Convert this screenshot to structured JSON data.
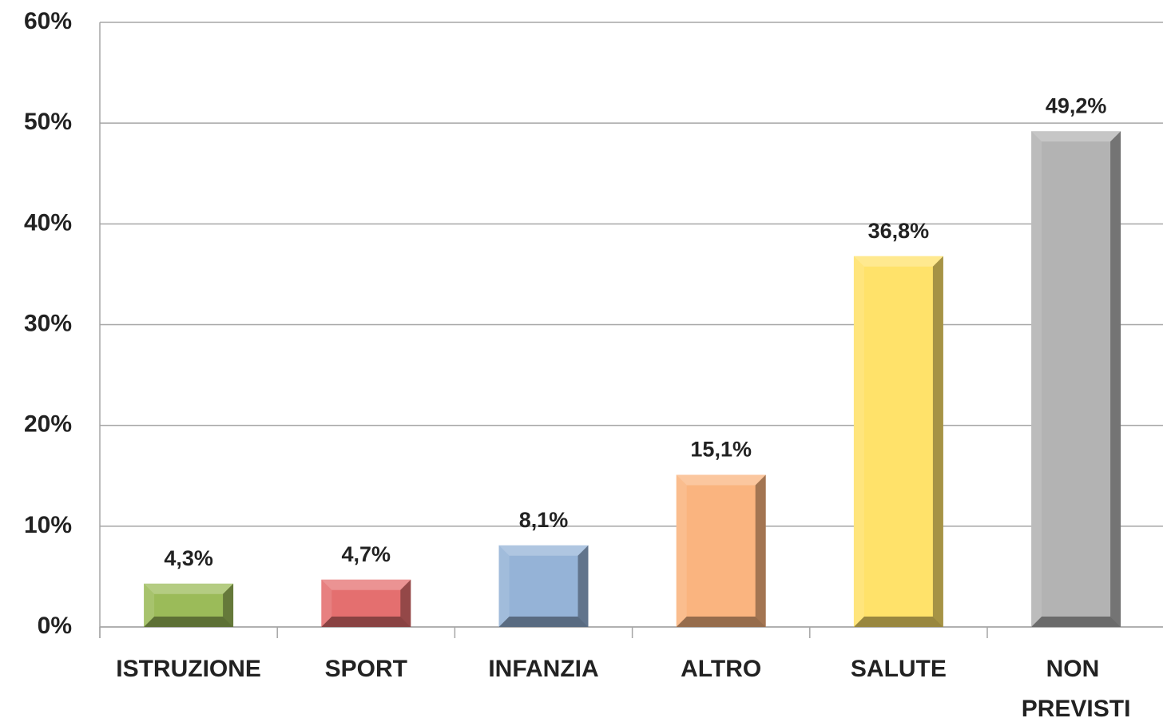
{
  "chart_data": {
    "type": "bar",
    "categories": [
      "ISTRUZIONE",
      "SPORT",
      "INFANZIA",
      "ALTRO",
      "SALUTE",
      "NON PREVISTI"
    ],
    "values": [
      4.3,
      4.7,
      8.1,
      15.1,
      36.8,
      49.2
    ],
    "value_labels": [
      "4,3%",
      "4,7%",
      "8,1%",
      "15,1%",
      "36,8%",
      "49,2%"
    ],
    "colors": [
      "#9bbb59",
      "#e46f6f",
      "#95b3d7",
      "#fab47f",
      "#ffe26a",
      "#b3b3b3"
    ],
    "ylim": [
      0,
      60
    ],
    "yticks": [
      {
        "value": 0,
        "label": "0%"
      },
      {
        "value": 10,
        "label": "10%"
      },
      {
        "value": 20,
        "label": "20%"
      },
      {
        "value": 30,
        "label": "30%"
      },
      {
        "value": 40,
        "label": "40%"
      },
      {
        "value": 50,
        "label": "50%"
      },
      {
        "value": 60,
        "label": "60%"
      }
    ],
    "grid": true
  }
}
